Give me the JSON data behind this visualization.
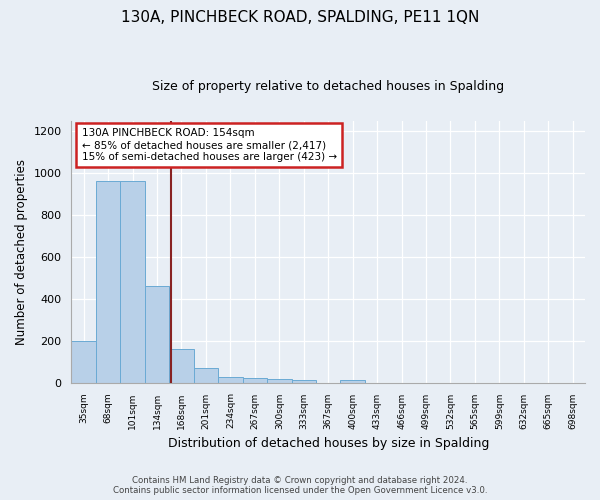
{
  "title": "130A, PINCHBECK ROAD, SPALDING, PE11 1QN",
  "subtitle": "Size of property relative to detached houses in Spalding",
  "xlabel": "Distribution of detached houses by size in Spalding",
  "ylabel": "Number of detached properties",
  "categories": [
    "35sqm",
    "68sqm",
    "101sqm",
    "134sqm",
    "168sqm",
    "201sqm",
    "234sqm",
    "267sqm",
    "300sqm",
    "333sqm",
    "367sqm",
    "400sqm",
    "433sqm",
    "466sqm",
    "499sqm",
    "532sqm",
    "565sqm",
    "599sqm",
    "632sqm",
    "665sqm",
    "698sqm"
  ],
  "values": [
    200,
    960,
    960,
    460,
    160,
    70,
    25,
    20,
    18,
    12,
    0,
    12,
    0,
    0,
    0,
    0,
    0,
    0,
    0,
    0,
    0
  ],
  "bar_color": "#b8d0e8",
  "bar_edge_color": "#6aaad4",
  "background_color": "#e8eef5",
  "grid_color": "#d0d8e0",
  "ylim": [
    0,
    1250
  ],
  "yticks": [
    0,
    200,
    400,
    600,
    800,
    1000,
    1200
  ],
  "annotation_text": "130A PINCHBECK ROAD: 154sqm\n← 85% of detached houses are smaller (2,417)\n15% of semi-detached houses are larger (423) →",
  "annotation_box_color": "#ffffff",
  "annotation_border_color": "#cc2222",
  "vline_color": "#882222",
  "footer_line1": "Contains HM Land Registry data © Crown copyright and database right 2024.",
  "footer_line2": "Contains public sector information licensed under the Open Government Licence v3.0."
}
